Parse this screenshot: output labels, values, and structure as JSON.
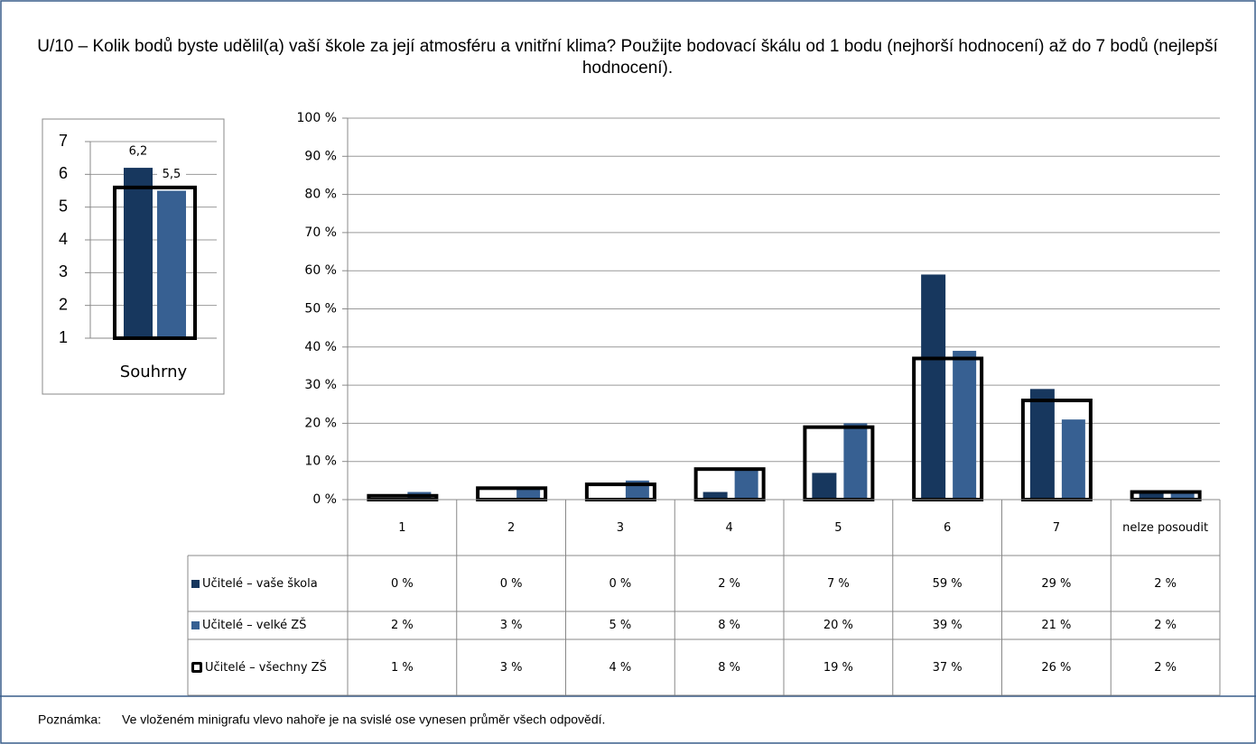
{
  "chart_data": [
    {
      "type": "bar",
      "title": "U/10 – Kolik bodů byste udělil(a) vaší škole za její atmosféru a vnitřní klima? Použijte bodovací škálu od 1 bodu (nejhorší hodnocení) až do 7 bodů (nejlepší hodnocení).",
      "categories": [
        "1",
        "2",
        "3",
        "4",
        "5",
        "6",
        "7",
        "nelze posoudit"
      ],
      "series": [
        {
          "name": "Učitelé – vaše škola",
          "color": "#17375e",
          "style": "filled",
          "values": [
            0,
            0,
            0,
            2,
            7,
            59,
            29,
            2
          ],
          "value_labels": [
            "0 %",
            "0 %",
            "0 %",
            "2 %",
            "7 %",
            "59 %",
            "29 %",
            "2 %"
          ]
        },
        {
          "name": "Učitelé – velké ZŠ",
          "color": "#376092",
          "style": "filled",
          "values": [
            2,
            3,
            5,
            8,
            20,
            39,
            21,
            2
          ],
          "value_labels": [
            "2 %",
            "3 %",
            "5 %",
            "8 %",
            "20 %",
            "39 %",
            "21 %",
            "2 %"
          ]
        },
        {
          "name": "Učitelé – všechny ZŠ",
          "color": "#000000",
          "style": "outline",
          "values": [
            1,
            3,
            4,
            8,
            19,
            37,
            26,
            2
          ],
          "value_labels": [
            "1 %",
            "3 %",
            "4 %",
            "8 %",
            "19 %",
            "37 %",
            "26 %",
            "2 %"
          ]
        }
      ],
      "ylim": [
        0,
        100
      ],
      "yticks": [
        {
          "value": 0,
          "label": "0 %"
        },
        {
          "value": 10,
          "label": "10 %"
        },
        {
          "value": 20,
          "label": "20 %"
        },
        {
          "value": 30,
          "label": "30 %"
        },
        {
          "value": 40,
          "label": "40 %"
        },
        {
          "value": 50,
          "label": "50 %"
        },
        {
          "value": 60,
          "label": "60 %"
        },
        {
          "value": 70,
          "label": "70 %"
        },
        {
          "value": 80,
          "label": "80 %"
        },
        {
          "value": 90,
          "label": "90 %"
        },
        {
          "value": 100,
          "label": "100 %"
        }
      ],
      "grid": true,
      "data_table": true
    },
    {
      "type": "bar",
      "categories": [
        "Souhrny"
      ],
      "series": [
        {
          "name": "Učitelé – vaše škola",
          "color": "#17375e",
          "style": "filled",
          "values": [
            6.2
          ],
          "value_labels": [
            "6,2"
          ]
        },
        {
          "name": "Učitelé – velké ZŠ",
          "color": "#376092",
          "style": "filled",
          "values": [
            5.5
          ],
          "value_labels": [
            "5,5"
          ]
        },
        {
          "name": "Učitelé – všechny ZŠ",
          "color": "#000000",
          "style": "outline",
          "values": [
            5.6
          ]
        }
      ],
      "ylim": [
        1,
        7
      ],
      "yticks": [
        1,
        2,
        3,
        4,
        5,
        6,
        7
      ],
      "grid": true
    }
  ],
  "note": {
    "label": "Poznámka:",
    "text": "Ve vloženém minigrafu vlevo nahoře je na svislé ose vynesen průměr všech odpovědí."
  }
}
